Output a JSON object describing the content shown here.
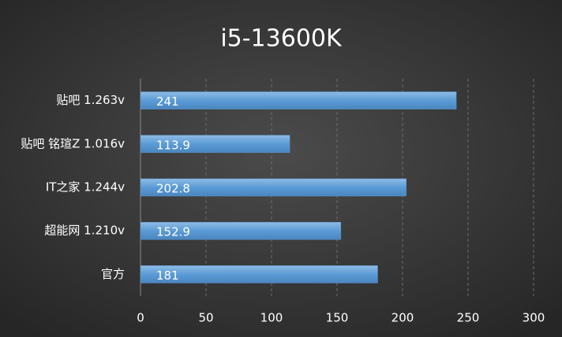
{
  "chart_data": {
    "type": "barh",
    "title": "i5-13600K",
    "categories": [
      "贴吧 1.263v",
      "贴吧 铭瑄Z 1.016v",
      "IT之家 1.244v",
      "超能网 1.210v",
      "官方"
    ],
    "values": [
      241,
      113.9,
      202.8,
      152.9,
      181
    ],
    "color": "#5b9bd5",
    "xlim": [
      0,
      300
    ],
    "xticks": [
      0,
      50,
      100,
      150,
      200,
      250,
      300
    ],
    "grid": true
  }
}
